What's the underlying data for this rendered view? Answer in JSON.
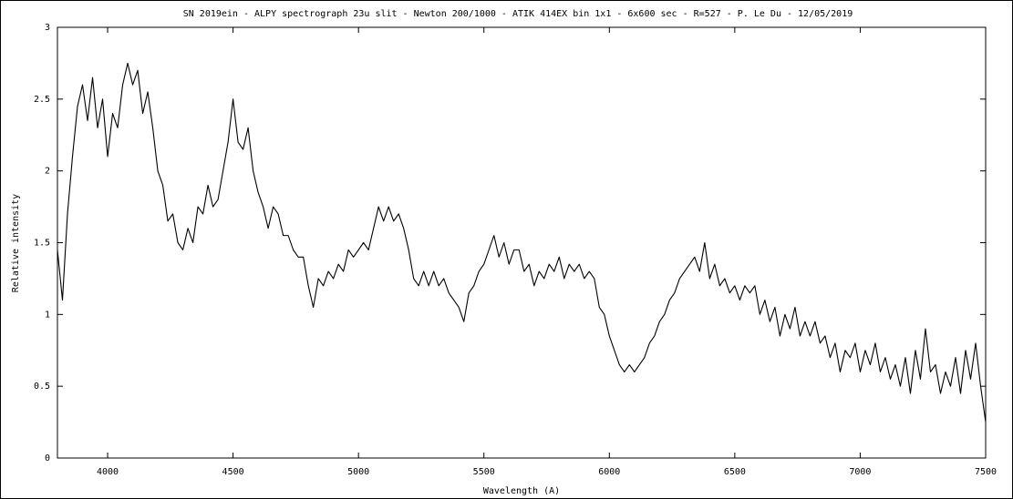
{
  "chart_data": {
    "type": "line",
    "title": "SN 2019ein - ALPY spectrograph 23u slit - Newton 200/1000 - ATIK 414EX bin 1x1 - 6x600 sec - R=527 - P. Le Du - 12/05/2019",
    "x_label": "Wavelength (A)",
    "y_label": "Relative intensity",
    "color": "#000000",
    "xlim": [
      3800,
      7500
    ],
    "xticks": [
      4000,
      4500,
      5000,
      5500,
      6000,
      6500,
      7000,
      7500
    ],
    "ylim": [
      0,
      3
    ],
    "yticks": [
      0,
      0.5,
      1,
      1.5,
      2,
      2.5,
      3
    ],
    "x": [
      3800,
      3820,
      3840,
      3860,
      3880,
      3900,
      3920,
      3940,
      3960,
      3980,
      4000,
      4020,
      4040,
      4060,
      4080,
      4100,
      4120,
      4140,
      4160,
      4180,
      4200,
      4220,
      4240,
      4260,
      4280,
      4300,
      4320,
      4340,
      4360,
      4380,
      4400,
      4420,
      4440,
      4460,
      4480,
      4500,
      4520,
      4540,
      4560,
      4580,
      4600,
      4620,
      4640,
      4660,
      4680,
      4700,
      4720,
      4740,
      4760,
      4780,
      4800,
      4820,
      4840,
      4860,
      4880,
      4900,
      4920,
      4940,
      4960,
      4980,
      5000,
      5020,
      5040,
      5060,
      5080,
      5100,
      5120,
      5140,
      5160,
      5180,
      5200,
      5220,
      5240,
      5260,
      5280,
      5300,
      5320,
      5340,
      5360,
      5380,
      5400,
      5420,
      5440,
      5460,
      5480,
      5500,
      5520,
      5540,
      5560,
      5580,
      5600,
      5620,
      5640,
      5660,
      5680,
      5700,
      5720,
      5740,
      5760,
      5780,
      5800,
      5820,
      5840,
      5860,
      5880,
      5900,
      5920,
      5940,
      5960,
      5980,
      6000,
      6020,
      6040,
      6060,
      6080,
      6100,
      6120,
      6140,
      6160,
      6180,
      6200,
      6220,
      6240,
      6260,
      6280,
      6300,
      6320,
      6340,
      6360,
      6380,
      6400,
      6420,
      6440,
      6460,
      6480,
      6500,
      6520,
      6540,
      6560,
      6580,
      6600,
      6620,
      6640,
      6660,
      6680,
      6700,
      6720,
      6740,
      6760,
      6780,
      6800,
      6820,
      6840,
      6860,
      6880,
      6900,
      6920,
      6940,
      6960,
      6980,
      7000,
      7020,
      7040,
      7060,
      7080,
      7100,
      7120,
      7140,
      7160,
      7180,
      7200,
      7220,
      7240,
      7260,
      7280,
      7300,
      7320,
      7340,
      7360,
      7380,
      7400,
      7420,
      7440,
      7460,
      7480,
      7500
    ],
    "values": [
      1.45,
      1.1,
      1.7,
      2.1,
      2.45,
      2.6,
      2.35,
      2.65,
      2.3,
      2.5,
      2.1,
      2.4,
      2.3,
      2.6,
      2.75,
      2.6,
      2.7,
      2.4,
      2.55,
      2.3,
      2.0,
      1.9,
      1.65,
      1.7,
      1.5,
      1.45,
      1.6,
      1.5,
      1.75,
      1.7,
      1.9,
      1.75,
      1.8,
      2.0,
      2.2,
      2.5,
      2.2,
      2.15,
      2.3,
      2.0,
      1.85,
      1.75,
      1.6,
      1.75,
      1.7,
      1.55,
      1.55,
      1.45,
      1.4,
      1.4,
      1.2,
      1.05,
      1.25,
      1.2,
      1.3,
      1.25,
      1.35,
      1.3,
      1.45,
      1.4,
      1.45,
      1.5,
      1.45,
      1.6,
      1.75,
      1.65,
      1.75,
      1.65,
      1.7,
      1.6,
      1.45,
      1.25,
      1.2,
      1.3,
      1.2,
      1.3,
      1.2,
      1.25,
      1.15,
      1.1,
      1.05,
      0.95,
      1.15,
      1.2,
      1.3,
      1.35,
      1.45,
      1.55,
      1.4,
      1.5,
      1.35,
      1.45,
      1.45,
      1.3,
      1.35,
      1.2,
      1.3,
      1.25,
      1.35,
      1.3,
      1.4,
      1.25,
      1.35,
      1.3,
      1.35,
      1.25,
      1.3,
      1.25,
      1.05,
      1.0,
      0.85,
      0.75,
      0.65,
      0.6,
      0.65,
      0.6,
      0.65,
      0.7,
      0.8,
      0.85,
      0.95,
      1.0,
      1.1,
      1.15,
      1.25,
      1.3,
      1.35,
      1.4,
      1.3,
      1.5,
      1.25,
      1.35,
      1.2,
      1.25,
      1.15,
      1.2,
      1.1,
      1.2,
      1.15,
      1.2,
      1.0,
      1.1,
      0.95,
      1.05,
      0.85,
      1.0,
      0.9,
      1.05,
      0.85,
      0.95,
      0.85,
      0.95,
      0.8,
      0.85,
      0.7,
      0.8,
      0.6,
      0.75,
      0.7,
      0.8,
      0.6,
      0.75,
      0.65,
      0.8,
      0.6,
      0.7,
      0.55,
      0.65,
      0.5,
      0.7,
      0.45,
      0.75,
      0.55,
      0.9,
      0.6,
      0.65,
      0.45,
      0.6,
      0.5,
      0.7,
      0.45,
      0.75,
      0.55,
      0.8,
      0.5,
      0.25
    ]
  }
}
